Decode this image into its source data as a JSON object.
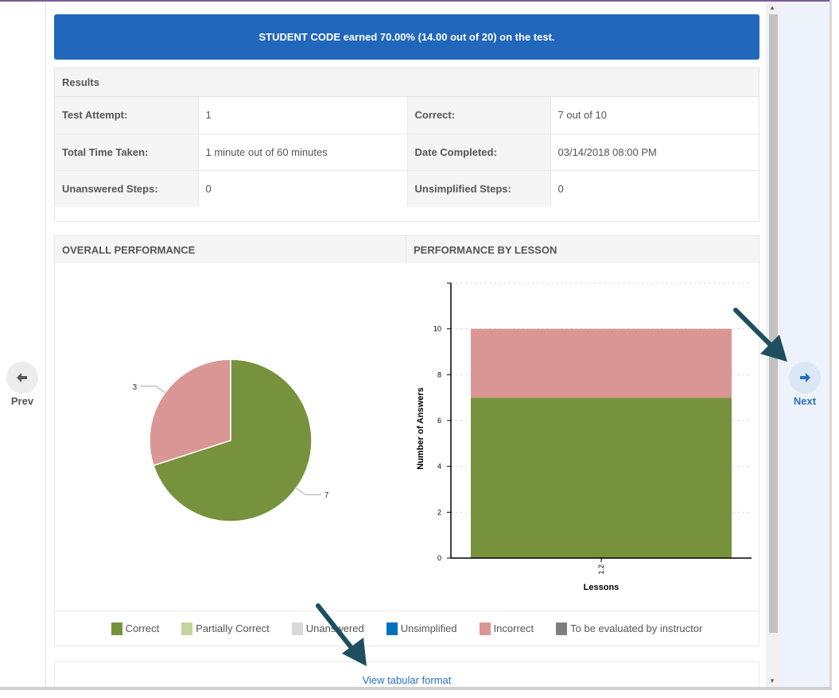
{
  "banner": {
    "text": "STUDENT CODE earned 70.00% (14.00 out of 20) on the test."
  },
  "results": {
    "title": "Results",
    "rows": [
      [
        {
          "label": "Test Attempt:",
          "value": "1"
        },
        {
          "label": "Correct:",
          "value": "7 out of 10"
        }
      ],
      [
        {
          "label": "Total Time Taken:",
          "value": "1 minute out of 60 minutes"
        },
        {
          "label": "Date Completed:",
          "value": "03/14/2018 08:00 PM"
        }
      ],
      [
        {
          "label": "Unanswered Steps:",
          "value": "0"
        },
        {
          "label": "Unsimplified Steps:",
          "value": "0"
        }
      ]
    ]
  },
  "overall": {
    "title": "OVERALL PERFORMANCE"
  },
  "by_lesson": {
    "title": "PERFORMANCE BY LESSON"
  },
  "chart_data": [
    {
      "type": "pie",
      "slices": [
        {
          "name": "Correct",
          "value": 7,
          "label": "7",
          "color": "#76923c"
        },
        {
          "name": "Incorrect",
          "value": 3,
          "label": "3",
          "color": "#d99694"
        }
      ]
    },
    {
      "type": "bar",
      "stacked": true,
      "categories": [
        "1.2"
      ],
      "series": [
        {
          "name": "Correct",
          "values": [
            7
          ],
          "color": "#76923c"
        },
        {
          "name": "Incorrect",
          "values": [
            3
          ],
          "color": "#d99694"
        }
      ],
      "xlabel": "Lessons",
      "ylabel": "Number of Answers",
      "yticks": [
        0,
        2,
        4,
        6,
        8,
        10
      ],
      "ylim": [
        0,
        12
      ],
      "grid": true
    }
  ],
  "legend": [
    {
      "label": "Correct",
      "color": "#76923c"
    },
    {
      "label": "Partially Correct",
      "color": "#c3d69b"
    },
    {
      "label": "Unanswered",
      "color": "#d9d9d9"
    },
    {
      "label": "Unsimplified",
      "color": "#0070c0"
    },
    {
      "label": "Incorrect",
      "color": "#d99694"
    },
    {
      "label": "To be evaluated by instructor",
      "color": "#7f7f7f"
    }
  ],
  "tabular": {
    "link": "View tabular format"
  },
  "nav": {
    "prev": "Prev",
    "next": "Next",
    "prev_icon": "arrow-left-icon",
    "next_icon": "arrow-right-icon"
  }
}
